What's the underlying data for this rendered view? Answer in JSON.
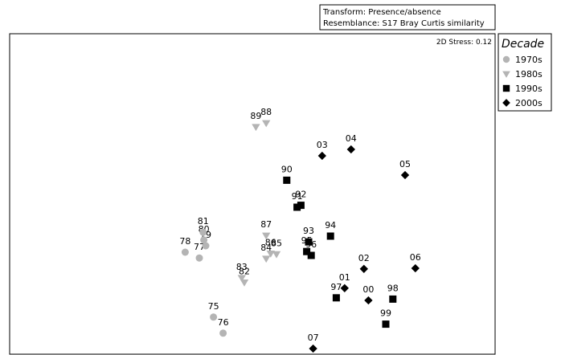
{
  "chart_data": {
    "type": "scatter",
    "info_box": [
      "Transform: Presence/absence",
      "Resemblance: S17 Bray Curtis similarity"
    ],
    "stress_text": "2D Stress: 0.12",
    "legend": {
      "title": "Decade",
      "placement": "top-right",
      "entries": [
        {
          "label": "1970s",
          "marker": "circle",
          "color": "#b4b4b4"
        },
        {
          "label": "1980s",
          "marker": "triangle-down",
          "color": "#b4b4b4"
        },
        {
          "label": "1990s",
          "marker": "square",
          "color": "#000000"
        },
        {
          "label": "2000s",
          "marker": "diamond",
          "color": "#000000"
        }
      ]
    },
    "series": [
      {
        "name": "1970s",
        "points": [
          {
            "label": "75",
            "x": -0.98,
            "y": -1.61
          },
          {
            "label": "76",
            "x": -0.83,
            "y": -1.86
          },
          {
            "label": "77",
            "x": -1.2,
            "y": -0.69
          },
          {
            "label": "78",
            "x": -1.42,
            "y": -0.6
          },
          {
            "label": "79",
            "x": -1.1,
            "y": -0.5
          },
          {
            "label": "80",
            "x": -1.13,
            "y": -0.41
          },
          {
            "label": "81",
            "x": -1.14,
            "y": -0.29
          }
        ]
      },
      {
        "name": "1980s",
        "points": [
          {
            "label": "82",
            "x": -0.5,
            "y": -1.07
          },
          {
            "label": "83",
            "x": -0.54,
            "y": -1.0
          },
          {
            "label": "84",
            "x": -0.16,
            "y": -0.7
          },
          {
            "label": "85",
            "x": 0.0,
            "y": -0.63
          },
          {
            "label": "86",
            "x": -0.09,
            "y": -0.62
          },
          {
            "label": "87",
            "x": -0.16,
            "y": -0.34
          },
          {
            "label": "88",
            "x": -0.16,
            "y": 1.41
          },
          {
            "label": "89",
            "x": -0.32,
            "y": 1.35
          }
        ]
      },
      {
        "name": "1990s",
        "points": [
          {
            "label": "90",
            "x": 0.16,
            "y": 0.52
          },
          {
            "label": "91",
            "x": 0.32,
            "y": 0.1
          },
          {
            "label": "92",
            "x": 0.38,
            "y": 0.13
          },
          {
            "label": "93",
            "x": 0.5,
            "y": -0.44
          },
          {
            "label": "94",
            "x": 0.84,
            "y": -0.35
          },
          {
            "label": "95",
            "x": 0.47,
            "y": -0.59
          },
          {
            "label": "96",
            "x": 0.54,
            "y": -0.65
          },
          {
            "label": "97",
            "x": 0.93,
            "y": -1.31
          },
          {
            "label": "98",
            "x": 1.81,
            "y": -1.33
          },
          {
            "label": "99",
            "x": 1.7,
            "y": -1.72
          }
        ]
      },
      {
        "name": "2000s",
        "points": [
          {
            "label": "00",
            "x": 1.43,
            "y": -1.35
          },
          {
            "label": "01",
            "x": 1.06,
            "y": -1.16
          },
          {
            "label": "02",
            "x": 1.36,
            "y": -0.86
          },
          {
            "label": "03",
            "x": 0.71,
            "y": 0.9
          },
          {
            "label": "04",
            "x": 1.16,
            "y": 1.0
          },
          {
            "label": "05",
            "x": 2.0,
            "y": 0.6
          },
          {
            "label": "06",
            "x": 2.16,
            "y": -0.85
          },
          {
            "label": "07",
            "x": 0.57,
            "y": -2.1
          }
        ]
      }
    ]
  }
}
